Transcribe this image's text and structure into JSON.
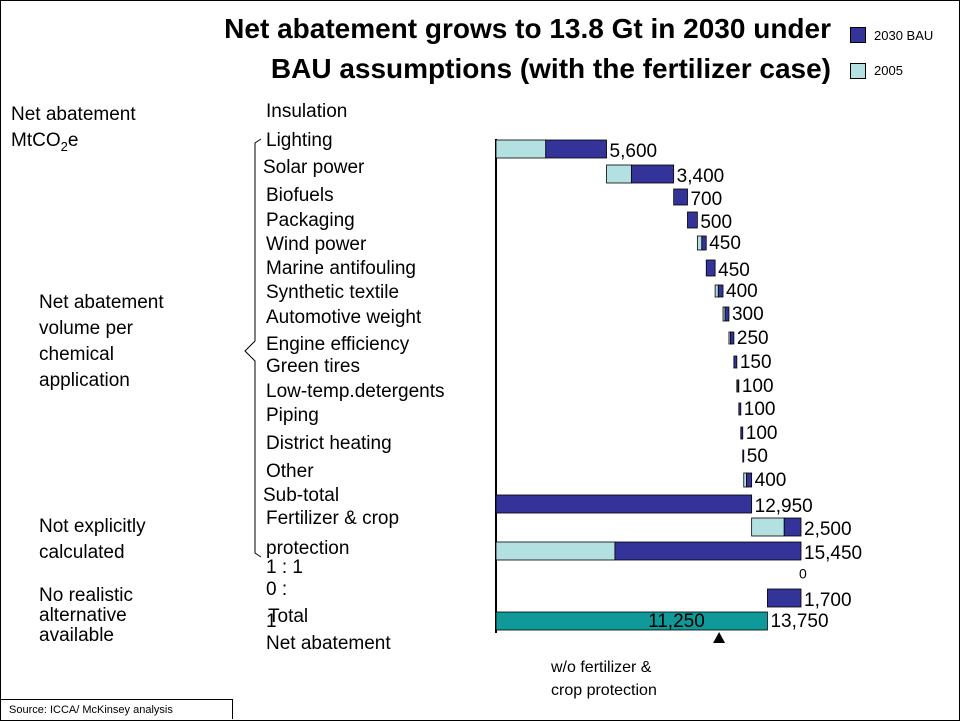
{
  "title_line1": "Net abatement grows to 13.8 Gt in 2030 under",
  "title_line2": "BAU assumptions (with the fertilizer case)",
  "legend": [
    {
      "label": "2030 BAU",
      "color": "#333399"
    },
    {
      "label": "2005",
      "color": "#b3e0e0"
    }
  ],
  "unit_label_line1": "Net abatement",
  "unit_label_line2_main": "MtCO",
  "unit_label_line2_sub": "2",
  "unit_label_line2_end": "e",
  "groups": {
    "per_application": [
      "Net abatement",
      "volume per",
      "chemical",
      "application"
    ],
    "not_calculated": [
      "Not explicitly",
      "calculated"
    ],
    "no_alternative": [
      "No realistic",
      "alternative",
      "available"
    ]
  },
  "row_labels": [
    "Insulation",
    "Lighting",
    "Solar power",
    "Biofuels",
    "Packaging",
    "Wind power",
    "Marine antifouling",
    "Synthetic textile",
    "Automotive weight",
    "Engine efficiency",
    "Green tires",
    "Low-temp.detergents",
    "Piping",
    "District heating",
    "Other",
    "Sub-total",
    "Fertilizer & crop",
    "protection",
    "1 : 1",
    "0 :",
    "1",
    "Total",
    "Net abatement"
  ],
  "annotation_line1": "w/o fertilizer &",
  "annotation_line2": "crop protection",
  "source": "Source:  ICCA/ McKinsey analysis",
  "colors": {
    "bau": "#333399",
    "y2005": "#b3e0e0",
    "net": "#0f9999"
  },
  "chart_data": {
    "type": "waterfall",
    "unit": "MtCO2e",
    "waterfall": [
      {
        "value": 5600,
        "label": "5,600",
        "cum_start": 0,
        "cum_end": 5600,
        "share_2005": 0.45
      },
      {
        "value": 3400,
        "label": "3,400",
        "cum_start": 5600,
        "cum_end": 9000,
        "share_2005": 0.37
      },
      {
        "value": 700,
        "label": "700",
        "cum_start": 9000,
        "cum_end": 9700,
        "share_2005": 0
      },
      {
        "value": 500,
        "label": "500",
        "cum_start": 9700,
        "cum_end": 10200,
        "share_2005": 0
      },
      {
        "value": 450,
        "label": "450",
        "cum_start": 10200,
        "cum_end": 10650,
        "share_2005": 0.5
      },
      {
        "value": 450,
        "label": "450",
        "cum_start": 10650,
        "cum_end": 11100,
        "share_2005": 0
      },
      {
        "value": 400,
        "label": "400",
        "cum_start": 11100,
        "cum_end": 11500,
        "share_2005": 0.4
      },
      {
        "value": 300,
        "label": "300",
        "cum_start": 11500,
        "cum_end": 11800,
        "share_2005": 0.35
      },
      {
        "value": 250,
        "label": "250",
        "cum_start": 11800,
        "cum_end": 12050,
        "share_2005": 0.3
      },
      {
        "value": 150,
        "label": "150",
        "cum_start": 12050,
        "cum_end": 12200,
        "share_2005": 0
      },
      {
        "value": 100,
        "label": "100",
        "cum_start": 12200,
        "cum_end": 12300,
        "share_2005": 0.5
      },
      {
        "value": 100,
        "label": "100",
        "cum_start": 12300,
        "cum_end": 12400,
        "share_2005": 0
      },
      {
        "value": 100,
        "label": "100",
        "cum_start": 12400,
        "cum_end": 12500,
        "share_2005": 0
      },
      {
        "value": 50,
        "label": "50",
        "cum_start": 12500,
        "cum_end": 12550,
        "share_2005": 0
      },
      {
        "value": 400,
        "label": "400",
        "cum_start": 12550,
        "cum_end": 12950,
        "share_2005": 0.35
      },
      {
        "value": 12950,
        "label": "12,950",
        "cum_start": 0,
        "cum_end": 12950,
        "share_2005": 0
      },
      {
        "value": 2500,
        "label": "2,500",
        "cum_start": 12950,
        "cum_end": 15450,
        "share_2005": 0.66
      },
      {
        "value": 15450,
        "label": "15,450",
        "cum_start": 0,
        "cum_end": 15450,
        "share_2005": 0.39
      },
      {
        "value": 0,
        "label": "0",
        "cum_start": 15450,
        "cum_end": 15450,
        "share_2005": 0
      },
      {
        "value": -1700,
        "label": "1,700",
        "cum_start": 13750,
        "cum_end": 15450,
        "share_2005": 0
      },
      {
        "value": 13750,
        "label": "13,750",
        "cum_start": 0,
        "cum_end": 13750,
        "share_2005": 0,
        "inner_value": 11250,
        "inner_label": "11,250",
        "net": true
      }
    ],
    "series": [
      {
        "name": "2030 BAU"
      },
      {
        "name": "2005"
      }
    ],
    "axis_max": 15450
  }
}
